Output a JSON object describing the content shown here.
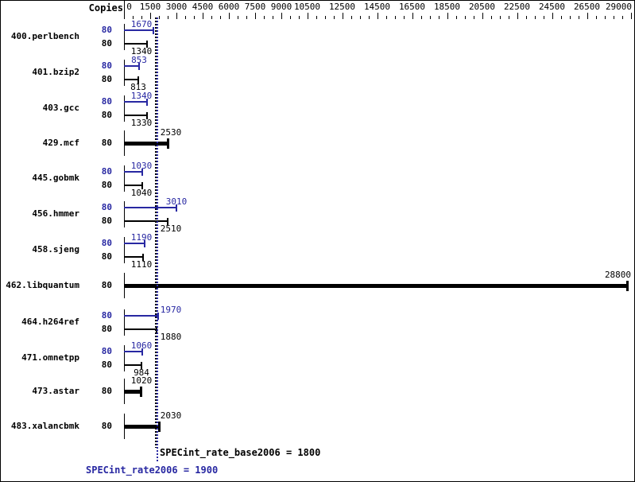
{
  "header": {
    "copies_label": "Copies"
  },
  "colors": {
    "peak_blue": "#2828a2",
    "base_black": "#000000",
    "background": "#ffffff",
    "border": "#000000"
  },
  "axis": {
    "tick_labels": [
      0,
      1500,
      3000,
      4500,
      6000,
      7500,
      9000,
      10500,
      12500,
      14500,
      16500,
      18500,
      20500,
      22500,
      24500,
      26500,
      29000
    ],
    "minor_step": 500,
    "max": 29000
  },
  "benchmarks": [
    {
      "name": "400.perlbench",
      "style": "double",
      "copies_peak": "80",
      "copies_base": "80",
      "peak": 1670,
      "base": 1340
    },
    {
      "name": "401.bzip2",
      "style": "double",
      "copies_peak": "80",
      "copies_base": "80",
      "peak": 853,
      "base": 813
    },
    {
      "name": "403.gcc",
      "style": "double",
      "copies_peak": "80",
      "copies_base": "80",
      "peak": 1340,
      "base": 1330
    },
    {
      "name": "429.mcf",
      "style": "single",
      "copies": "80",
      "value": 2530
    },
    {
      "name": "445.gobmk",
      "style": "double",
      "copies_peak": "80",
      "copies_base": "80",
      "peak": 1030,
      "base": 1040
    },
    {
      "name": "456.hmmer",
      "style": "double",
      "copies_peak": "80",
      "copies_base": "80",
      "peak": 3010,
      "base": 2510
    },
    {
      "name": "458.sjeng",
      "style": "double",
      "copies_peak": "80",
      "copies_base": "80",
      "peak": 1190,
      "base": 1110
    },
    {
      "name": "462.libquantum",
      "style": "single",
      "copies": "80",
      "value": 28800
    },
    {
      "name": "464.h264ref",
      "style": "double",
      "copies_peak": "80",
      "copies_base": "80",
      "peak": 1970,
      "base": 1880
    },
    {
      "name": "471.omnetpp",
      "style": "double",
      "copies_peak": "80",
      "copies_base": "80",
      "peak": 1060,
      "base": 984
    },
    {
      "name": "473.astar",
      "style": "single",
      "copies": "80",
      "value": 1020
    },
    {
      "name": "483.xalancbmk",
      "style": "single",
      "copies": "80",
      "value": 2030
    }
  ],
  "summary": {
    "base_text": "SPECint_rate_base2006 = 1800",
    "base_value": 1800,
    "peak_text": "SPECint_rate2006 = 1900",
    "peak_value": 1900
  },
  "chart_data": {
    "type": "bar",
    "orientation": "horizontal",
    "title": "",
    "xlabel": "",
    "ylabel": "Copies",
    "categories": [
      "400.perlbench",
      "401.bzip2",
      "403.gcc",
      "429.mcf",
      "445.gobmk",
      "456.hmmer",
      "458.sjeng",
      "462.libquantum",
      "464.h264ref",
      "471.omnetpp",
      "473.astar",
      "483.xalancbmk"
    ],
    "copies": [
      80,
      80,
      80,
      80,
      80,
      80,
      80,
      80,
      80,
      80,
      80,
      80
    ],
    "series": [
      {
        "name": "SPECint_rate2006 (peak)",
        "color": "#2828a2",
        "values": [
          1670,
          853,
          1340,
          2530,
          1030,
          3010,
          1190,
          28800,
          1970,
          1060,
          1020,
          2030
        ]
      },
      {
        "name": "SPECint_rate_base2006 (base)",
        "color": "#000000",
        "values": [
          1340,
          813,
          1330,
          2530,
          1040,
          2510,
          1110,
          28800,
          1880,
          984,
          1020,
          2030
        ]
      }
    ],
    "xlim": [
      0,
      29200
    ],
    "x_ticks": [
      0,
      1500,
      3000,
      4500,
      6000,
      7500,
      9000,
      10500,
      12500,
      14500,
      16500,
      18500,
      20500,
      22500,
      24500,
      26500,
      29000
    ],
    "grid": false,
    "legend_position": "none",
    "reference_lines": [
      {
        "label": "SPECint_rate_base2006",
        "value": 1800,
        "color": "#000000",
        "style": "dotted"
      },
      {
        "label": "SPECint_rate2006",
        "value": 1900,
        "color": "#2828a2",
        "style": "dotted"
      }
    ],
    "annotations": [
      "SPECint_rate_base2006 = 1800",
      "SPECint_rate2006 = 1900"
    ]
  }
}
